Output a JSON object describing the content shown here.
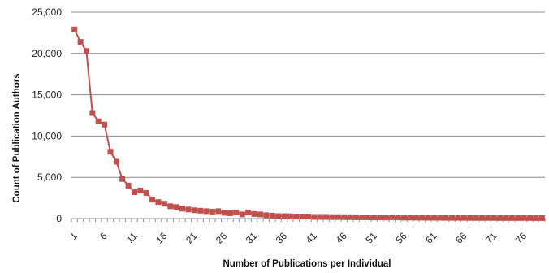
{
  "chart_data": {
    "type": "line",
    "title": "",
    "xlabel": "Number of Publications per Individual",
    "ylabel": "Count of Publication Authors",
    "ylim": [
      0,
      25000
    ],
    "y_ticks": [
      "0",
      "5,000",
      "10,000",
      "15,000",
      "20,000",
      "25,000"
    ],
    "y_tick_values": [
      0,
      5000,
      10000,
      15000,
      20000,
      25000
    ],
    "x_tick_labels": [
      "1",
      "6",
      "11",
      "16",
      "21",
      "26",
      "31",
      "36",
      "41",
      "46",
      "51",
      "56",
      "61",
      "66",
      "71",
      "76"
    ],
    "grid": "horizontal",
    "legend": "none",
    "colors": {
      "series": "#c0504d",
      "grid": "#8c8c8c",
      "axis": "#8c8c8c",
      "text": "#222222"
    },
    "series": [
      {
        "marker": "square",
        "x": [
          1,
          2,
          3,
          4,
          5,
          6,
          7,
          8,
          9,
          10,
          11,
          12,
          13,
          14,
          15,
          16,
          17,
          18,
          19,
          20,
          21,
          22,
          23,
          24,
          25,
          26,
          27,
          28,
          29,
          30,
          31,
          32,
          33,
          34,
          35,
          36,
          37,
          38,
          39,
          40,
          41,
          42,
          43,
          44,
          45,
          46,
          47,
          48,
          49,
          50,
          51,
          52,
          53,
          54,
          55,
          56,
          57,
          58,
          59,
          60,
          61,
          62,
          63,
          64,
          65,
          66,
          67,
          68,
          69,
          70,
          71,
          72,
          73,
          74,
          75,
          76,
          77,
          78,
          79
        ],
        "values": [
          22900,
          21400,
          20300,
          12800,
          11800,
          11400,
          8100,
          6900,
          4800,
          4000,
          3200,
          3400,
          3100,
          2300,
          2000,
          1800,
          1500,
          1400,
          1200,
          1100,
          1000,
          950,
          900,
          850,
          900,
          700,
          650,
          750,
          500,
          750,
          550,
          500,
          400,
          350,
          300,
          300,
          280,
          250,
          250,
          250,
          200,
          200,
          200,
          180,
          180,
          170,
          170,
          160,
          150,
          150,
          140,
          140,
          130,
          160,
          150,
          120,
          120,
          110,
          110,
          100,
          100,
          100,
          90,
          90,
          90,
          90,
          80,
          80,
          80,
          75,
          75,
          70,
          70,
          70,
          70,
          65,
          65,
          60,
          60
        ]
      }
    ]
  }
}
